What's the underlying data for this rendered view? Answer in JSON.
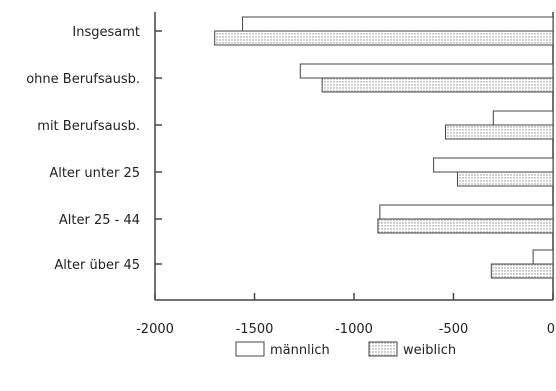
{
  "chart_data": {
    "type": "bar",
    "orientation": "horizontal",
    "title": "",
    "xlabel": "",
    "ylabel": "",
    "xlim": [
      -2000,
      0
    ],
    "x_ticks": [
      -2000,
      -1500,
      -1000,
      -500,
      0
    ],
    "x_tick_labels": [
      "-2000",
      "-1500",
      "-1000",
      "-500",
      "0"
    ],
    "grid": false,
    "legend_position": "bottom",
    "categories": [
      "Insgesamt",
      "ohne Berufsausb.",
      "mit Berufsausb.",
      "Alter unter 25",
      "Alter 25 - 44",
      "Alter über 45"
    ],
    "series": [
      {
        "name": "männlich",
        "fill": "white",
        "values": [
          -1560,
          -1270,
          -300,
          -600,
          -870,
          -100
        ]
      },
      {
        "name": "weiblich",
        "fill": "dotted",
        "values": [
          -1700,
          -1160,
          -540,
          -480,
          -880,
          -310
        ]
      }
    ]
  },
  "colors": {
    "axis": "#444444",
    "bar_outline": "#444444",
    "dot_pattern": "#888888"
  }
}
